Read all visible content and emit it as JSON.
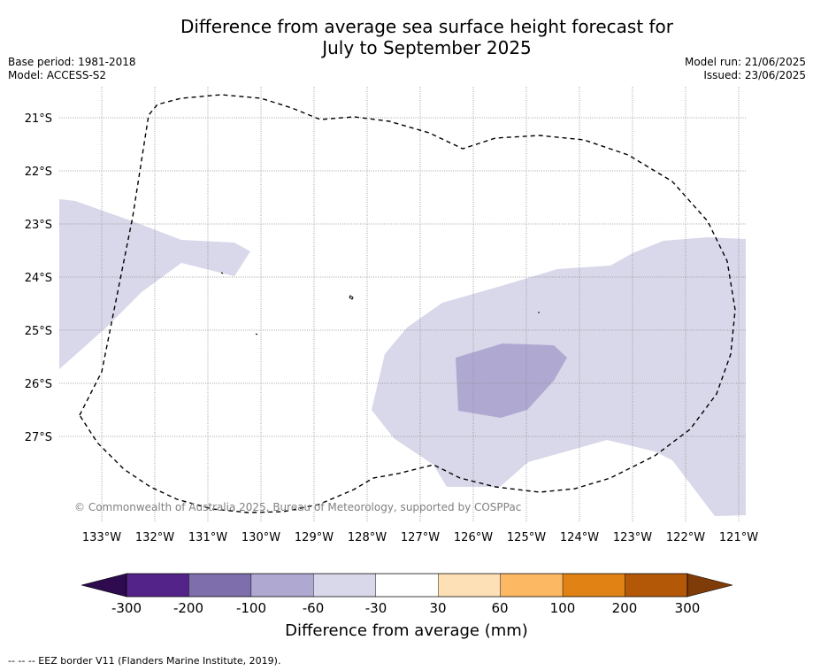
{
  "title_line1": "Difference from average sea surface height forecast for",
  "title_line2": "July to September 2025",
  "base_period": "Base period: 1981-2018",
  "model": "Model: ACCESS-S2",
  "model_run": "Model run: 21/06/2025",
  "issued": "Issued: 23/06/2025",
  "lat_labels": [
    "21°S",
    "22°S",
    "23°S",
    "24°S",
    "25°S",
    "26°S",
    "27°S"
  ],
  "lon_labels": [
    "133°W",
    "132°W",
    "131°W",
    "130°W",
    "129°W",
    "128°W",
    "127°W",
    "126°W",
    "125°W",
    "124°W",
    "123°W",
    "122°W",
    "121°W"
  ],
  "copyright": "© Commonwealth of Australia 2025, Bureau of Meteorology, supported by COSPPac",
  "colorbar": {
    "ticks": [
      "-300",
      "-200",
      "-100",
      "-60",
      "-30",
      "30",
      "60",
      "100",
      "200",
      "300"
    ],
    "colors": [
      "#2e0b4e",
      "#54238a",
      "#7e6eab",
      "#afa9d2",
      "#d8d8ea",
      "#ffffff",
      "#fee0b6",
      "#fdb863",
      "#e08214",
      "#b35806",
      "#7f3b08"
    ],
    "label": "Difference from average (mm)"
  },
  "footer": "--  --  -- EEZ border V11 (Flanders Marine Institute, 2019)."
}
